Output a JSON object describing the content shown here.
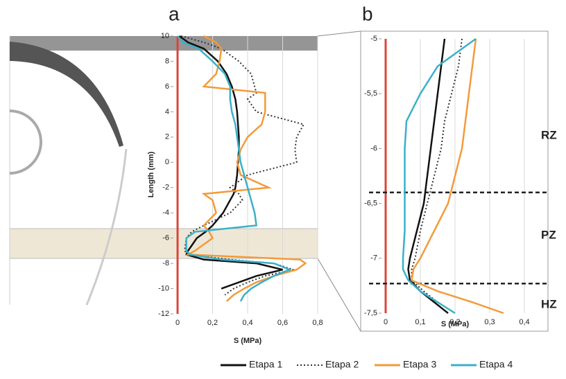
{
  "chart_data": [
    {
      "type": "line",
      "orientation": "vertical",
      "panel": "a",
      "ylabel": "Length (mm)",
      "xlabel": "S (MPa)",
      "xlim": [
        0,
        0.8
      ],
      "xticks": [
        0,
        {
          "value": 0.2,
          "label": "0,2"
        },
        {
          "value": 0.4,
          "label": "0,4"
        },
        {
          "value": 0.6,
          "label": "0,6"
        },
        {
          "value": 0.8,
          "label": "0,8"
        }
      ],
      "ylim": [
        -12,
        10
      ],
      "yticks": [
        10,
        8,
        6,
        4,
        2,
        0,
        -2,
        -4,
        -6,
        -8,
        -10,
        -12
      ],
      "grid": true,
      "zero_line_color": "#d9453a",
      "y": [
        10,
        9.5,
        9,
        8,
        7,
        6,
        5.5,
        5,
        4,
        3,
        2,
        1,
        0,
        -1,
        -2,
        -2.5,
        -3,
        -4,
        -5,
        -5.5,
        -6,
        -7,
        -7.3,
        -7.7,
        -8,
        -8.5,
        -9,
        -9.5,
        -10,
        -10.5,
        -11
      ],
      "series": [
        {
          "name": "Etapa 1",
          "color": "#111111",
          "dash": false,
          "values": [
            0.01,
            0.06,
            0.15,
            0.23,
            0.28,
            0.31,
            0.32,
            0.33,
            0.34,
            0.345,
            0.35,
            0.35,
            0.345,
            0.34,
            0.33,
            0.32,
            0.3,
            0.26,
            0.2,
            0.16,
            0.11,
            0.06,
            0.05,
            0.15,
            0.45,
            0.6,
            0.45,
            0.35,
            0.25,
            null,
            null
          ]
        },
        {
          "name": "Etapa 2",
          "color": "#333333",
          "dash": true,
          "values": [
            0.02,
            0.15,
            0.25,
            0.35,
            0.42,
            0.44,
            0.45,
            0.4,
            0.45,
            0.72,
            0.68,
            0.67,
            0.68,
            0.4,
            0.3,
            0.35,
            0.37,
            0.3,
            0.15,
            0.08,
            0.05,
            0.04,
            0.06,
            0.3,
            0.55,
            0.66,
            0.5,
            0.4,
            0.32,
            0.27,
            null
          ]
        },
        {
          "name": "Etapa 3",
          "color": "#f39a3a",
          "dash": false,
          "values": [
            0.15,
            0.22,
            0.25,
            0.24,
            0.22,
            0.15,
            0.5,
            0.5,
            0.5,
            0.48,
            0.4,
            0.36,
            0.34,
            0.36,
            0.52,
            0.15,
            0.2,
            0.22,
            0.15,
            0.18,
            0.2,
            0.1,
            0.06,
            0.7,
            0.73,
            0.68,
            0.55,
            0.45,
            0.38,
            0.32,
            0.28
          ]
        },
        {
          "name": "Etapa 4",
          "color": "#3ab0c8",
          "dash": false,
          "values": [
            0.0,
            0.03,
            0.12,
            0.2,
            0.27,
            0.3,
            0.3,
            0.3,
            0.31,
            0.33,
            0.34,
            0.35,
            0.36,
            0.38,
            0.4,
            0.41,
            0.42,
            0.44,
            0.45,
            0.1,
            0.05,
            0.05,
            0.07,
            0.25,
            0.55,
            0.64,
            0.55,
            0.48,
            0.42,
            0.38,
            0.36
          ]
        }
      ]
    },
    {
      "type": "line",
      "orientation": "vertical",
      "panel": "b",
      "xlabel": "S (MPa)",
      "xlim": [
        0,
        0.4
      ],
      "xticks": [
        0,
        {
          "value": 0.1,
          "label": "0,1"
        },
        {
          "value": 0.2,
          "label": "0,2"
        },
        {
          "value": 0.3,
          "label": "0,3"
        },
        {
          "value": 0.4,
          "label": "0,4"
        }
      ],
      "ylim": [
        -7.5,
        -5
      ],
      "yticks": [
        -5,
        {
          "value": -5.5,
          "label": "-5,5"
        },
        -6,
        {
          "value": -6.5,
          "label": "-6,5"
        },
        -7,
        {
          "value": -7.5,
          "label": "-7,5"
        }
      ],
      "grid": true,
      "zero_line_color": "#d9453a",
      "boundaries": [
        -6.4,
        -7.23
      ],
      "annotations": [
        "RZ",
        "PZ",
        "HZ"
      ],
      "y": [
        -5,
        -5.25,
        -5.5,
        -5.75,
        -6,
        -6.25,
        -6.5,
        -6.75,
        -7,
        -7.1,
        -7.2,
        -7.3,
        -7.4,
        -7.5
      ],
      "series": [
        {
          "name": "Etapa 1",
          "color": "#111111",
          "dash": false,
          "values": [
            0.17,
            0.16,
            0.15,
            0.14,
            0.13,
            0.12,
            0.11,
            0.09,
            0.07,
            0.065,
            0.07,
            0.1,
            0.14,
            0.18
          ]
        },
        {
          "name": "Etapa 2",
          "color": "#333333",
          "dash": true,
          "values": [
            0.22,
            0.21,
            0.19,
            0.17,
            0.16,
            0.14,
            0.12,
            0.1,
            0.085,
            0.075,
            0.075,
            0.11,
            0.15,
            0.2
          ]
        },
        {
          "name": "Etapa 3",
          "color": "#f39a3a",
          "dash": false,
          "values": [
            0.26,
            0.25,
            0.24,
            0.23,
            0.22,
            0.2,
            0.18,
            0.14,
            0.1,
            0.08,
            0.075,
            0.15,
            0.25,
            0.34
          ]
        },
        {
          "name": "Etapa 4",
          "color": "#3ab0c8",
          "dash": false,
          "values": [
            0.26,
            0.15,
            0.1,
            0.06,
            0.055,
            0.055,
            0.055,
            0.055,
            0.05,
            0.05,
            0.065,
            0.1,
            0.15,
            0.2
          ]
        }
      ]
    }
  ]
}
